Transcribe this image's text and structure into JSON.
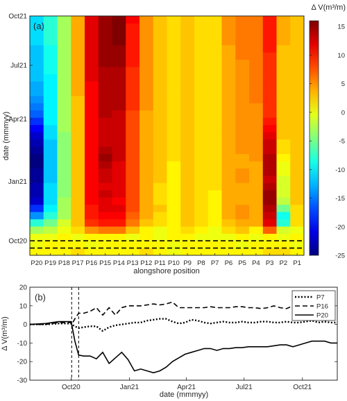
{
  "chart_data": [
    {
      "type": "heatmap",
      "panel_label": "(a)",
      "xlabel": "alongshore position",
      "ylabel": "date (mmmyy)",
      "x_categories": [
        "P20",
        "P19",
        "P18",
        "P17",
        "P16",
        "P15",
        "P14",
        "P13",
        "P12",
        "P11",
        "P10",
        "P9",
        "P8",
        "P7",
        "P6",
        "P5",
        "P4",
        "P3",
        "P2",
        "P1"
      ],
      "y_ticks": [
        "Oct20",
        "Jan21",
        "Apr21",
        "Jul21",
        "Oct21"
      ],
      "colorbar": {
        "title": "Δ V(m³/m)",
        "ticks": [
          "15",
          "10",
          "5",
          "0",
          "-5",
          "-10",
          "-15",
          "-20",
          "-25"
        ],
        "range": [
          -25,
          16
        ]
      },
      "row_count": 33,
      "dashed_rows": [
        1,
        2
      ],
      "values": [
        [
          1,
          1,
          1,
          2,
          1,
          1,
          1,
          1,
          2,
          1,
          0,
          1,
          1,
          1,
          1,
          1,
          1,
          2,
          2,
          1
        ],
        [
          0,
          1,
          1,
          1,
          0,
          1,
          1,
          1,
          1,
          1,
          0,
          1,
          1,
          1,
          1,
          0,
          1,
          1,
          1,
          0
        ],
        [
          0,
          0,
          1,
          0,
          1,
          1,
          1,
          0,
          1,
          0,
          1,
          1,
          0,
          0,
          0,
          1,
          0,
          1,
          0,
          1
        ],
        [
          -3,
          -2,
          0,
          2,
          5,
          6,
          6,
          3,
          1,
          0,
          1,
          2,
          1,
          0,
          2,
          3,
          1,
          7,
          -1,
          0
        ],
        [
          -8,
          -5,
          -1,
          3,
          9,
          10,
          10,
          6,
          3,
          2,
          1,
          3,
          2,
          1,
          3,
          4,
          4,
          12,
          -8,
          2
        ],
        [
          -14,
          -8,
          -3,
          3,
          10,
          11,
          11,
          7,
          4,
          2,
          1,
          3,
          2,
          1,
          4,
          5,
          4,
          13,
          -9,
          2
        ],
        [
          -18,
          -10,
          -3,
          3,
          10,
          12,
          12,
          8,
          4,
          3,
          1,
          3,
          2,
          1,
          4,
          5,
          4,
          14,
          -5,
          2
        ],
        [
          -22,
          -11,
          -3,
          3,
          11,
          12,
          11,
          8,
          4,
          2,
          1,
          3,
          2,
          1,
          4,
          4,
          4,
          15,
          -2,
          3
        ],
        [
          -23,
          -11,
          -4,
          3,
          11,
          13,
          12,
          8,
          4,
          2,
          1,
          3,
          2,
          1,
          4,
          4,
          4,
          15,
          -1,
          3
        ],
        [
          -23,
          -11,
          -4,
          3,
          11,
          12,
          12,
          8,
          4,
          2,
          1,
          3,
          2,
          2,
          4,
          4,
          4,
          14,
          -1,
          3
        ],
        [
          -24,
          -12,
          -4,
          3,
          11,
          13,
          12,
          8,
          4,
          3,
          1,
          3,
          2,
          2,
          4,
          5,
          4,
          13,
          -1,
          3
        ],
        [
          -24,
          -12,
          -4,
          3,
          11,
          13,
          12,
          8,
          4,
          3,
          1,
          3,
          2,
          2,
          4,
          5,
          4,
          14,
          0,
          3
        ],
        [
          -25,
          -12,
          -4,
          3,
          11,
          14,
          12,
          8,
          4,
          3,
          1,
          3,
          2,
          2,
          4,
          4,
          4,
          14,
          0,
          3
        ],
        [
          -25,
          -12,
          -4,
          3,
          11,
          15,
          13,
          8,
          4,
          3,
          2,
          3,
          2,
          2,
          4,
          4,
          5,
          14,
          1,
          3
        ],
        [
          -24,
          -12,
          -4,
          3,
          11,
          14,
          13,
          8,
          4,
          3,
          2,
          3,
          2,
          2,
          4,
          5,
          5,
          13,
          2,
          3
        ],
        [
          -23,
          -12,
          -4,
          3,
          11,
          13,
          13,
          8,
          4,
          3,
          2,
          3,
          2,
          2,
          4,
          5,
          5,
          13,
          2,
          3
        ],
        [
          -22,
          -11,
          -4,
          3,
          11,
          13,
          13,
          8,
          4,
          3,
          2,
          3,
          2,
          2,
          4,
          5,
          5,
          12,
          3,
          3
        ],
        [
          -20,
          -11,
          -3,
          3,
          11,
          13,
          13,
          8,
          4,
          3,
          2,
          3,
          2,
          2,
          4,
          5,
          5,
          11,
          3,
          3
        ],
        [
          -18,
          -10,
          -3,
          3,
          11,
          13,
          13,
          8,
          4,
          3,
          2,
          3,
          2,
          2,
          4,
          5,
          5,
          10,
          3,
          3
        ],
        [
          -16,
          -10,
          -3,
          3,
          11,
          14,
          13,
          8,
          4,
          3,
          2,
          3,
          2,
          2,
          4,
          5,
          5,
          9,
          3,
          3
        ],
        [
          -15,
          -10,
          -3,
          3,
          11,
          14,
          14,
          9,
          5,
          3,
          2,
          3,
          2,
          2,
          4,
          5,
          5,
          9,
          3,
          3
        ],
        [
          -14,
          -10,
          -3,
          3,
          11,
          14,
          14,
          9,
          5,
          3,
          2,
          3,
          2,
          2,
          4,
          5,
          6,
          9,
          3,
          3
        ],
        [
          -13,
          -10,
          -3,
          4,
          11,
          14,
          14,
          9,
          5,
          3,
          2,
          3,
          2,
          2,
          4,
          5,
          6,
          9,
          3,
          3
        ],
        [
          -13,
          -10,
          -3,
          4,
          11,
          14,
          14,
          9,
          5,
          3,
          2,
          3,
          2,
          2,
          4,
          5,
          6,
          9,
          3,
          3
        ],
        [
          -12,
          -10,
          -3,
          4,
          12,
          14,
          14,
          9,
          5,
          3,
          2,
          3,
          2,
          2,
          4,
          5,
          6,
          9,
          3,
          3
        ],
        [
          -12,
          -9,
          -3,
          4,
          12,
          14,
          14,
          9,
          5,
          3,
          2,
          3,
          2,
          2,
          4,
          5,
          6,
          9,
          3,
          3
        ],
        [
          -12,
          -9,
          -3,
          4,
          12,
          15,
          15,
          10,
          5,
          3,
          2,
          3,
          2,
          2,
          4,
          5,
          6,
          9,
          3,
          3
        ],
        [
          -12,
          -9,
          -3,
          4,
          12,
          15,
          15,
          10,
          5,
          3,
          2,
          3,
          2,
          2,
          4,
          6,
          6,
          9,
          3,
          3
        ],
        [
          -12,
          -9,
          -3,
          4,
          12,
          15,
          15,
          10,
          5,
          3,
          2,
          3,
          2,
          2,
          4,
          6,
          6,
          10,
          3,
          3
        ],
        [
          -11,
          -8,
          -3,
          4,
          12,
          15,
          16,
          10,
          5,
          3,
          2,
          3,
          2,
          2,
          5,
          6,
          6,
          10,
          4,
          3
        ],
        [
          -11,
          -8,
          -3,
          4,
          12,
          15,
          16,
          10,
          5,
          3,
          2,
          3,
          2,
          2,
          5,
          6,
          6,
          10,
          4,
          3
        ],
        [
          -11,
          -8,
          -3,
          4,
          12,
          15,
          16,
          10,
          5,
          3,
          2,
          3,
          2,
          2,
          5,
          6,
          6,
          10,
          4,
          3
        ],
        [
          -11,
          -8,
          -3,
          4,
          12,
          15,
          16,
          11,
          5,
          3,
          2,
          3,
          2,
          2,
          5,
          6,
          6,
          10,
          4,
          3
        ]
      ]
    },
    {
      "type": "line",
      "panel_label": "(b)",
      "xlabel": "date (mmmyy)",
      "ylabel": "Δ V(m³/m)",
      "ylim": [
        -30,
        20
      ],
      "y_ticks": [
        20,
        10,
        0,
        -10,
        -20,
        -30
      ],
      "x_ticks": [
        "Oct20",
        "Jan21",
        "Apr21",
        "Jul21",
        "Oct21"
      ],
      "x_tick_days": [
        0,
        92,
        182,
        273,
        365
      ],
      "xlim_days": [
        -65,
        420
      ],
      "event_lines_days": [
        1,
        12
      ],
      "legend_position": "top-right",
      "series": [
        {
          "name": "P7",
          "style": "dotted",
          "x_days": [
            -65,
            -40,
            -20,
            0,
            1,
            6,
            12,
            20,
            30,
            40,
            50,
            60,
            70,
            80,
            90,
            100,
            110,
            120,
            130,
            140,
            150,
            160,
            170,
            180,
            190,
            200,
            210,
            220,
            230,
            240,
            250,
            260,
            270,
            280,
            290,
            300,
            310,
            320,
            330,
            340,
            350,
            360,
            370,
            380,
            390,
            400,
            410,
            420
          ],
          "y": [
            0,
            0,
            0.5,
            0.5,
            0,
            -1,
            -2,
            -1.5,
            -1,
            -1,
            -3.5,
            -1.5,
            -0.5,
            0,
            0.5,
            1,
            1,
            2,
            2.5,
            3,
            3,
            1.5,
            0.5,
            1,
            2.5,
            2,
            1,
            0.5,
            1,
            1.5,
            1,
            1,
            1.5,
            1,
            1,
            1.5,
            1.5,
            1,
            1,
            1.5,
            1,
            1,
            1.5,
            2,
            1,
            1.5,
            1,
            1
          ]
        },
        {
          "name": "P16",
          "style": "dashed",
          "x_days": [
            -65,
            -40,
            -20,
            0,
            1,
            6,
            12,
            20,
            30,
            40,
            50,
            60,
            70,
            80,
            90,
            100,
            110,
            120,
            130,
            140,
            150,
            160,
            170,
            180,
            190,
            200,
            210,
            220,
            230,
            240,
            250,
            260,
            270,
            280,
            290,
            300,
            310,
            320,
            330,
            340,
            350,
            360,
            370,
            380,
            390,
            400,
            410,
            420
          ],
          "y": [
            0,
            0,
            1,
            1,
            0,
            3,
            6,
            6,
            7,
            9,
            5,
            9,
            5,
            9,
            10,
            10,
            10,
            10.5,
            11,
            10.5,
            11,
            12,
            9,
            9,
            9,
            9,
            9,
            9.5,
            9,
            9,
            9,
            9.5,
            9.5,
            9,
            9,
            8.5,
            9,
            10,
            9,
            8.5,
            10,
            9.5,
            9,
            9,
            9,
            9,
            8.5,
            10
          ]
        },
        {
          "name": "P20",
          "style": "solid",
          "x_days": [
            -65,
            -40,
            -20,
            0,
            1,
            6,
            12,
            20,
            30,
            40,
            50,
            60,
            70,
            80,
            90,
            100,
            110,
            120,
            130,
            140,
            150,
            160,
            170,
            180,
            190,
            200,
            210,
            220,
            230,
            240,
            250,
            260,
            270,
            280,
            290,
            300,
            310,
            320,
            330,
            340,
            350,
            360,
            370,
            380,
            390,
            400,
            410,
            420
          ],
          "y": [
            0,
            0.5,
            1.5,
            1.5,
            0,
            -9,
            -16.5,
            -17,
            -17,
            -18.5,
            -15,
            -21,
            -18,
            -15,
            -19,
            -25,
            -24,
            -25,
            -26,
            -25,
            -23,
            -20,
            -18,
            -16,
            -15,
            -14,
            -13,
            -13,
            -14,
            -13,
            -13,
            -12.5,
            -12.5,
            -12,
            -12,
            -12,
            -12,
            -11.5,
            -11,
            -11,
            -12,
            -11,
            -10,
            -9,
            -9,
            -9,
            -10,
            -10
          ]
        }
      ]
    }
  ]
}
